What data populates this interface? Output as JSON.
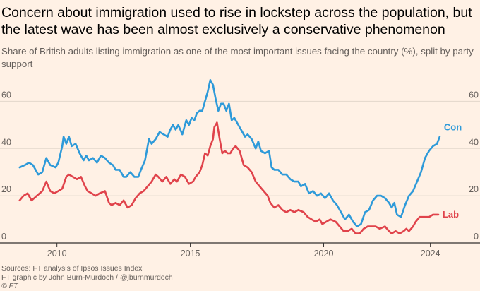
{
  "header": {
    "title": "Concern about immigration used to rise in lockstep across the population, but the latest wave has been almost exclusively a conservative phenomenon",
    "subtitle": "Share of British adults listing immigration as one of the most important issues facing the country (%), split by party support"
  },
  "footer": {
    "source": "Sources: FT analysis of Ipsos Issues Index",
    "credit": "FT graphic by John Burn-Murdoch / @jburnmurdoch",
    "copyright": "© FT"
  },
  "colors": {
    "background": "#fff1e5",
    "con": "#2e9ad9",
    "lab": "#e0434b",
    "grid": "#e3d7cb",
    "axis": "#33302e"
  },
  "chart_data": {
    "type": "line",
    "xlim": [
      2008.5,
      2025.2
    ],
    "ylim": [
      0,
      70
    ],
    "x_ticks": [
      2010,
      2015,
      2020,
      2024
    ],
    "x_tick_labels": [
      "2010",
      "2015",
      "2020",
      "2024"
    ],
    "y_ticks": [
      0,
      20,
      40,
      60
    ],
    "y_tick_labels": [
      "0",
      "20",
      "40",
      "60"
    ],
    "grid": "horizontal",
    "legend": "direct labels at line ends",
    "series": [
      {
        "name": "Con",
        "color": "#2e9ad9",
        "points": [
          [
            2008.6,
            32
          ],
          [
            2008.8,
            33
          ],
          [
            2008.95,
            34
          ],
          [
            2009.1,
            33
          ],
          [
            2009.3,
            29
          ],
          [
            2009.45,
            30
          ],
          [
            2009.6,
            36
          ],
          [
            2009.75,
            33
          ],
          [
            2009.95,
            32
          ],
          [
            2010.05,
            34
          ],
          [
            2010.2,
            41
          ],
          [
            2010.25,
            45
          ],
          [
            2010.35,
            42
          ],
          [
            2010.45,
            45
          ],
          [
            2010.55,
            41
          ],
          [
            2010.7,
            42
          ],
          [
            2010.85,
            38
          ],
          [
            2011.0,
            35
          ],
          [
            2011.1,
            37
          ],
          [
            2011.2,
            35
          ],
          [
            2011.35,
            36
          ],
          [
            2011.5,
            34
          ],
          [
            2011.65,
            37
          ],
          [
            2011.8,
            36
          ],
          [
            2011.95,
            34
          ],
          [
            2012.1,
            33
          ],
          [
            2012.2,
            31
          ],
          [
            2012.35,
            31
          ],
          [
            2012.5,
            28
          ],
          [
            2012.6,
            28
          ],
          [
            2012.75,
            30
          ],
          [
            2012.9,
            28
          ],
          [
            2013.05,
            28
          ],
          [
            2013.15,
            31
          ],
          [
            2013.3,
            35
          ],
          [
            2013.45,
            44
          ],
          [
            2013.55,
            42
          ],
          [
            2013.7,
            44
          ],
          [
            2013.85,
            47
          ],
          [
            2014.0,
            46
          ],
          [
            2014.15,
            45
          ],
          [
            2014.25,
            48
          ],
          [
            2014.35,
            50
          ],
          [
            2014.45,
            48
          ],
          [
            2014.55,
            50
          ],
          [
            2014.7,
            46
          ],
          [
            2014.85,
            52
          ],
          [
            2014.95,
            50
          ],
          [
            2015.05,
            53
          ],
          [
            2015.15,
            52
          ],
          [
            2015.25,
            55
          ],
          [
            2015.35,
            56
          ],
          [
            2015.45,
            56
          ],
          [
            2015.55,
            60
          ],
          [
            2015.65,
            64
          ],
          [
            2015.75,
            69
          ],
          [
            2015.85,
            67
          ],
          [
            2015.95,
            61
          ],
          [
            2016.05,
            56
          ],
          [
            2016.15,
            59
          ],
          [
            2016.25,
            59
          ],
          [
            2016.35,
            56
          ],
          [
            2016.45,
            59
          ],
          [
            2016.55,
            52
          ],
          [
            2016.65,
            53
          ],
          [
            2016.75,
            51
          ],
          [
            2016.9,
            48
          ],
          [
            2017.05,
            45
          ],
          [
            2017.15,
            46
          ],
          [
            2017.3,
            44
          ],
          [
            2017.45,
            40
          ],
          [
            2017.55,
            43
          ],
          [
            2017.65,
            39
          ],
          [
            2017.8,
            38
          ],
          [
            2017.95,
            39
          ],
          [
            2018.05,
            32
          ],
          [
            2018.15,
            31
          ],
          [
            2018.3,
            31
          ],
          [
            2018.45,
            29
          ],
          [
            2018.6,
            29
          ],
          [
            2018.75,
            27
          ],
          [
            2018.9,
            26
          ],
          [
            2019.05,
            26
          ],
          [
            2019.15,
            24
          ],
          [
            2019.3,
            25
          ],
          [
            2019.45,
            21
          ],
          [
            2019.6,
            22
          ],
          [
            2019.75,
            20
          ],
          [
            2019.9,
            21
          ],
          [
            2020.05,
            19
          ],
          [
            2020.2,
            21
          ],
          [
            2020.35,
            18
          ],
          [
            2020.5,
            16
          ],
          [
            2020.65,
            13
          ],
          [
            2020.8,
            10
          ],
          [
            2020.95,
            12
          ],
          [
            2021.1,
            9
          ],
          [
            2021.25,
            7
          ],
          [
            2021.4,
            8
          ],
          [
            2021.55,
            13
          ],
          [
            2021.7,
            14
          ],
          [
            2021.85,
            18
          ],
          [
            2022.0,
            20
          ],
          [
            2022.15,
            20
          ],
          [
            2022.3,
            19
          ],
          [
            2022.45,
            17
          ],
          [
            2022.55,
            15
          ],
          [
            2022.65,
            17
          ],
          [
            2022.75,
            12
          ],
          [
            2022.9,
            11
          ],
          [
            2023.05,
            16
          ],
          [
            2023.2,
            20
          ],
          [
            2023.35,
            22
          ],
          [
            2023.5,
            26
          ],
          [
            2023.65,
            30
          ],
          [
            2023.8,
            36
          ],
          [
            2023.95,
            39
          ],
          [
            2024.1,
            41
          ],
          [
            2024.25,
            42
          ],
          [
            2024.35,
            45
          ]
        ]
      },
      {
        "name": "Lab",
        "color": "#e0434b",
        "points": [
          [
            2008.6,
            18
          ],
          [
            2008.75,
            20
          ],
          [
            2008.9,
            21
          ],
          [
            2009.05,
            18
          ],
          [
            2009.25,
            20
          ],
          [
            2009.45,
            22
          ],
          [
            2009.6,
            26
          ],
          [
            2009.75,
            22
          ],
          [
            2009.9,
            21
          ],
          [
            2010.05,
            22
          ],
          [
            2010.2,
            23
          ],
          [
            2010.35,
            28
          ],
          [
            2010.45,
            29
          ],
          [
            2010.6,
            28
          ],
          [
            2010.75,
            27
          ],
          [
            2010.9,
            28
          ],
          [
            2011.05,
            24
          ],
          [
            2011.15,
            22
          ],
          [
            2011.3,
            21
          ],
          [
            2011.45,
            20
          ],
          [
            2011.6,
            21
          ],
          [
            2011.8,
            22
          ],
          [
            2011.95,
            17
          ],
          [
            2012.05,
            16
          ],
          [
            2012.2,
            17
          ],
          [
            2012.35,
            16
          ],
          [
            2012.5,
            18
          ],
          [
            2012.65,
            15
          ],
          [
            2012.8,
            16
          ],
          [
            2012.95,
            19
          ],
          [
            2013.1,
            21
          ],
          [
            2013.25,
            22
          ],
          [
            2013.4,
            24
          ],
          [
            2013.55,
            26
          ],
          [
            2013.7,
            29
          ],
          [
            2013.8,
            28
          ],
          [
            2013.95,
            26
          ],
          [
            2014.1,
            28
          ],
          [
            2014.25,
            25
          ],
          [
            2014.4,
            27
          ],
          [
            2014.5,
            26
          ],
          [
            2014.65,
            29
          ],
          [
            2014.8,
            28
          ],
          [
            2014.95,
            25
          ],
          [
            2015.1,
            26
          ],
          [
            2015.2,
            28
          ],
          [
            2015.35,
            30
          ],
          [
            2015.45,
            33
          ],
          [
            2015.55,
            38
          ],
          [
            2015.65,
            37
          ],
          [
            2015.75,
            41
          ],
          [
            2015.85,
            44
          ],
          [
            2015.9,
            49
          ],
          [
            2015.95,
            50
          ],
          [
            2016.0,
            51
          ],
          [
            2016.1,
            44
          ],
          [
            2016.2,
            38
          ],
          [
            2016.3,
            39
          ],
          [
            2016.4,
            38
          ],
          [
            2016.5,
            38
          ],
          [
            2016.6,
            40
          ],
          [
            2016.7,
            41
          ],
          [
            2016.85,
            39
          ],
          [
            2017.0,
            33
          ],
          [
            2017.15,
            32
          ],
          [
            2017.3,
            30
          ],
          [
            2017.45,
            26
          ],
          [
            2017.6,
            24
          ],
          [
            2017.75,
            22
          ],
          [
            2017.9,
            20
          ],
          [
            2018.0,
            17
          ],
          [
            2018.15,
            15
          ],
          [
            2018.3,
            16
          ],
          [
            2018.45,
            14
          ],
          [
            2018.6,
            13
          ],
          [
            2018.75,
            14
          ],
          [
            2018.9,
            13
          ],
          [
            2019.05,
            14
          ],
          [
            2019.25,
            13
          ],
          [
            2019.4,
            11
          ],
          [
            2019.55,
            10
          ],
          [
            2019.7,
            9
          ],
          [
            2019.85,
            10
          ],
          [
            2019.95,
            8
          ],
          [
            2020.1,
            9
          ],
          [
            2020.25,
            10
          ],
          [
            2020.45,
            9
          ],
          [
            2020.6,
            7
          ],
          [
            2020.75,
            5
          ],
          [
            2020.9,
            5
          ],
          [
            2021.05,
            6
          ],
          [
            2021.2,
            4
          ],
          [
            2021.35,
            4
          ],
          [
            2021.5,
            6
          ],
          [
            2021.65,
            7
          ],
          [
            2021.8,
            7
          ],
          [
            2021.95,
            7
          ],
          [
            2022.1,
            6
          ],
          [
            2022.3,
            7
          ],
          [
            2022.45,
            5
          ],
          [
            2022.55,
            4
          ],
          [
            2022.7,
            5
          ],
          [
            2022.85,
            4
          ],
          [
            2023.0,
            5
          ],
          [
            2023.1,
            6
          ],
          [
            2023.2,
            5
          ],
          [
            2023.35,
            7
          ],
          [
            2023.45,
            9
          ],
          [
            2023.6,
            11
          ],
          [
            2023.8,
            11
          ],
          [
            2023.95,
            11
          ],
          [
            2024.1,
            12
          ],
          [
            2024.3,
            12
          ]
        ]
      }
    ]
  }
}
